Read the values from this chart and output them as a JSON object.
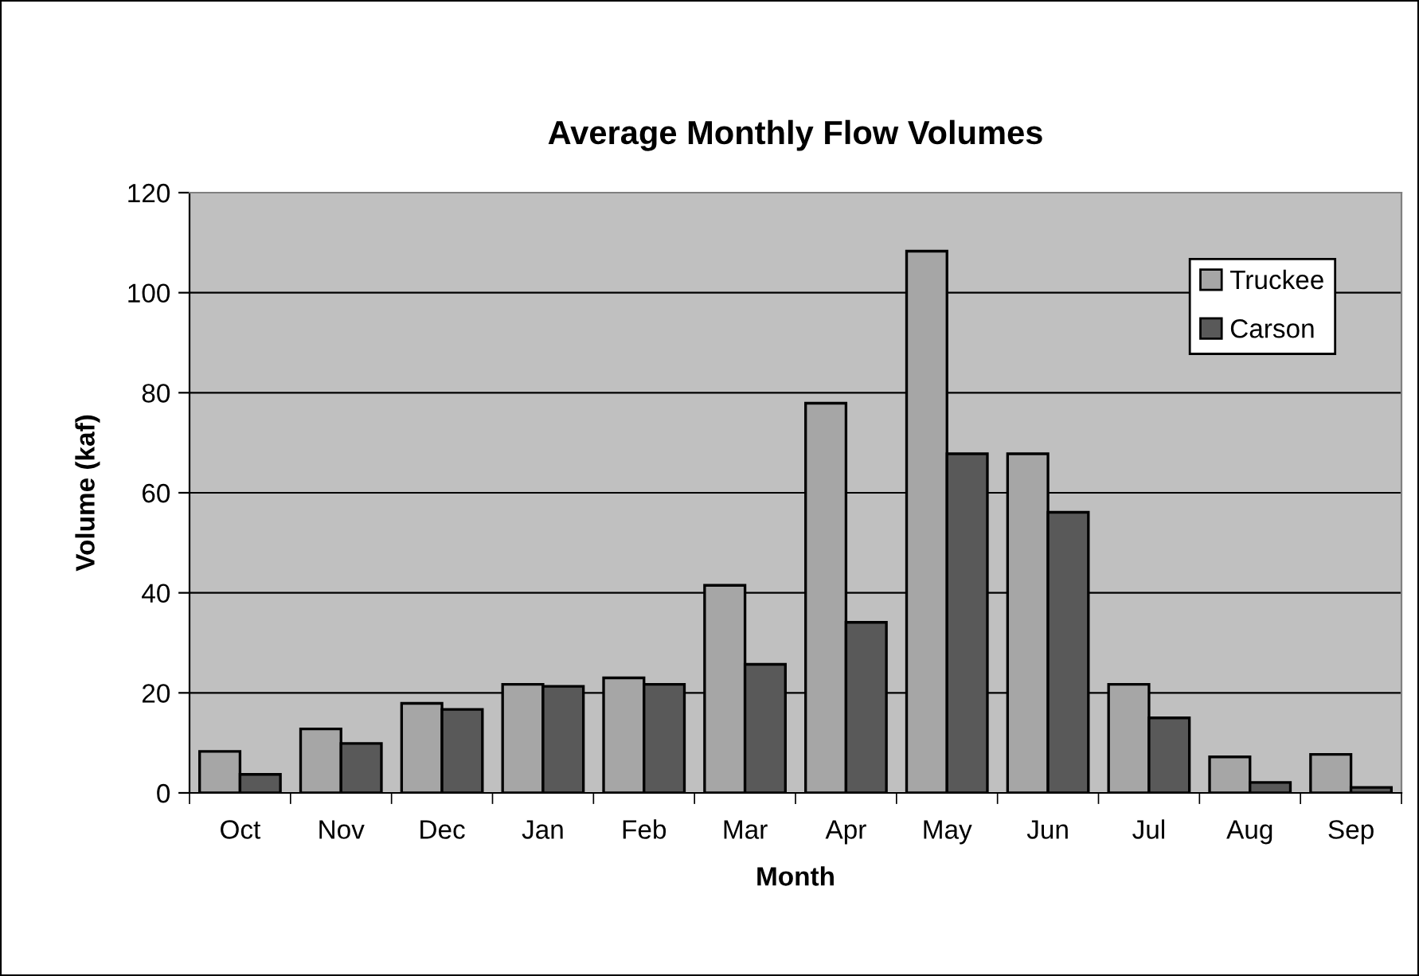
{
  "chart_data": {
    "type": "bar",
    "title": "Average Monthly Flow Volumes",
    "xlabel": "Month",
    "ylabel": "Volume (kaf)",
    "categories": [
      "Oct",
      "Nov",
      "Dec",
      "Jan",
      "Feb",
      "Mar",
      "Apr",
      "May",
      "Jun",
      "Jul",
      "Aug",
      "Sep"
    ],
    "series": [
      {
        "name": "Truckee",
        "color": "#a6a6a6",
        "values": [
          8.3,
          12.8,
          17.9,
          21.7,
          23.0,
          41.5,
          77.9,
          108.3,
          67.8,
          21.7,
          7.2,
          7.7
        ]
      },
      {
        "name": "Carson",
        "color": "#595959",
        "values": [
          3.7,
          9.9,
          16.7,
          21.3,
          21.7,
          25.7,
          34.1,
          67.8,
          56.1,
          15.0,
          2.1,
          1.1
        ]
      }
    ],
    "ylim": [
      0,
      120
    ],
    "yticks": [
      0,
      20,
      40,
      60,
      80,
      100,
      120
    ],
    "grid": "y",
    "legend": "top right"
  }
}
